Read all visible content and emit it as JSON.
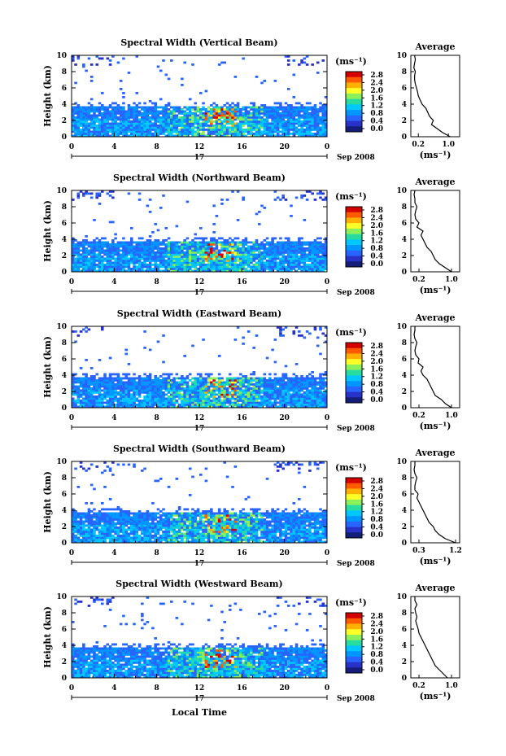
{
  "figure": {
    "xlabel": "Local Time",
    "colorbar_unit": "(ms⁻¹)",
    "avg_xlabel": "(ms⁻¹)",
    "avg_title": "Average",
    "ylabel": "Height (km)",
    "date_label": "17",
    "month_label": "Sep 2008"
  },
  "colorbar": {
    "ticks": [
      "2.8",
      "2.4",
      "2.0",
      "1.6",
      "1.2",
      "0.8",
      "0.4",
      "0.0"
    ],
    "colors": [
      "#d40000",
      "#ff5a00",
      "#ffb000",
      "#ffff28",
      "#8cf05a",
      "#28dca0",
      "#00c8ff",
      "#0096ff",
      "#2864ff",
      "#2832c8",
      "#141e78"
    ]
  },
  "chart_data": [
    {
      "type": "heatmap",
      "title": "Spectral Width (Vertical Beam)",
      "x_ticks": [
        "0",
        "4",
        "8",
        "12",
        "16",
        "20",
        "0"
      ],
      "y_ticks": [
        "0",
        "2",
        "4",
        "6",
        "8",
        "10"
      ],
      "xlim": [
        0,
        24
      ],
      "ylim": [
        0,
        10
      ],
      "avg_x_ticks": [
        "0.2",
        "1.0"
      ],
      "avg_xlim": [
        0.0,
        1.3
      ],
      "avg_profile": {
        "height": [
          0,
          0.5,
          1,
          1.5,
          2,
          2.5,
          3,
          3.5,
          4,
          4.5,
          5,
          5.5,
          6,
          6.5,
          7,
          7.5,
          8,
          8.5,
          9,
          9.5,
          10
        ],
        "value": [
          1.05,
          0.85,
          0.7,
          0.55,
          0.6,
          0.5,
          0.45,
          0.4,
          0.3,
          0.25,
          0.2,
          0.18,
          0.15,
          0.12,
          0.1,
          0.1,
          0.12,
          0.08,
          0.1,
          0.12,
          0.1
        ]
      }
    },
    {
      "type": "heatmap",
      "title": "Spectral Width (Northward Beam)",
      "x_ticks": [
        "0",
        "4",
        "8",
        "12",
        "16",
        "20",
        "0"
      ],
      "y_ticks": [
        "0",
        "2",
        "4",
        "6",
        "8",
        "10"
      ],
      "xlim": [
        0,
        24
      ],
      "ylim": [
        0,
        10
      ],
      "avg_x_ticks": [
        "0.2",
        "1.0"
      ],
      "avg_xlim": [
        0.0,
        1.2
      ],
      "avg_profile": {
        "height": [
          0,
          0.5,
          1,
          1.5,
          2,
          2.5,
          3,
          3.5,
          4,
          4.5,
          5,
          5.5,
          6,
          6.5,
          7,
          7.5,
          8,
          8.5,
          9,
          9.5,
          10
        ],
        "value": [
          1.0,
          0.85,
          0.7,
          0.6,
          0.55,
          0.5,
          0.4,
          0.35,
          0.3,
          0.25,
          0.3,
          0.15,
          0.2,
          0.12,
          0.1,
          0.12,
          0.15,
          0.1,
          0.1,
          0.08,
          0.1
        ]
      }
    },
    {
      "type": "heatmap",
      "title": "Spectral Width (Eastward Beam)",
      "x_ticks": [
        "0",
        "4",
        "8",
        "12",
        "16",
        "20",
        "0"
      ],
      "y_ticks": [
        "0",
        "2",
        "4",
        "6",
        "8",
        "10"
      ],
      "xlim": [
        0,
        24
      ],
      "ylim": [
        0,
        10
      ],
      "avg_x_ticks": [
        "0.2",
        "1.0"
      ],
      "avg_xlim": [
        0.0,
        1.2
      ],
      "avg_profile": {
        "height": [
          0,
          0.5,
          1,
          1.5,
          2,
          2.5,
          3,
          3.5,
          4,
          4.5,
          5,
          5.5,
          6,
          6.5,
          7,
          7.5,
          8,
          8.5,
          9,
          9.5,
          10
        ],
        "value": [
          1.0,
          0.85,
          0.75,
          0.6,
          0.55,
          0.5,
          0.45,
          0.4,
          0.3,
          0.25,
          0.3,
          0.18,
          0.2,
          0.12,
          0.1,
          0.12,
          0.15,
          0.1,
          0.08,
          0.1,
          0.1
        ]
      }
    },
    {
      "type": "heatmap",
      "title": "Spectral Width (Southward Beam)",
      "x_ticks": [
        "0",
        "4",
        "8",
        "12",
        "16",
        "20",
        "0"
      ],
      "y_ticks": [
        "0",
        "2",
        "4",
        "6",
        "8",
        "10"
      ],
      "xlim": [
        0,
        24
      ],
      "ylim": [
        0,
        10
      ],
      "avg_x_ticks": [
        "0.3",
        "1.2"
      ],
      "avg_xlim": [
        0.1,
        1.3
      ],
      "avg_profile": {
        "height": [
          0,
          0.5,
          1,
          1.5,
          2,
          2.5,
          3,
          3.5,
          4,
          4.5,
          5,
          5.5,
          6,
          6.5,
          7,
          7.5,
          8,
          8.5,
          9,
          9.5,
          10
        ],
        "value": [
          1.2,
          0.95,
          0.8,
          0.7,
          0.65,
          0.55,
          0.5,
          0.45,
          0.4,
          0.35,
          0.3,
          0.25,
          0.28,
          0.2,
          0.2,
          0.22,
          0.25,
          0.2,
          0.18,
          0.2,
          0.2
        ]
      }
    },
    {
      "type": "heatmap",
      "title": "Spectral Width (Westward Beam)",
      "x_ticks": [
        "0",
        "4",
        "8",
        "12",
        "16",
        "20",
        "0"
      ],
      "y_ticks": [
        "0",
        "2",
        "4",
        "6",
        "8",
        "10"
      ],
      "xlim": [
        0,
        24
      ],
      "ylim": [
        0,
        10
      ],
      "avg_x_ticks": [
        "0.2",
        "1.0"
      ],
      "avg_xlim": [
        0.0,
        1.2
      ],
      "avg_profile": {
        "height": [
          0,
          0.5,
          1,
          1.5,
          2,
          2.5,
          3,
          3.5,
          4,
          4.5,
          5,
          5.5,
          6,
          6.5,
          7,
          7.5,
          8,
          8.5,
          9,
          9.5,
          10
        ],
        "value": [
          0.9,
          0.8,
          0.7,
          0.6,
          0.55,
          0.5,
          0.45,
          0.4,
          0.35,
          0.3,
          0.25,
          0.2,
          0.18,
          0.15,
          0.12,
          0.15,
          0.12,
          0.1,
          0.15,
          0.1,
          0.1
        ]
      }
    }
  ]
}
